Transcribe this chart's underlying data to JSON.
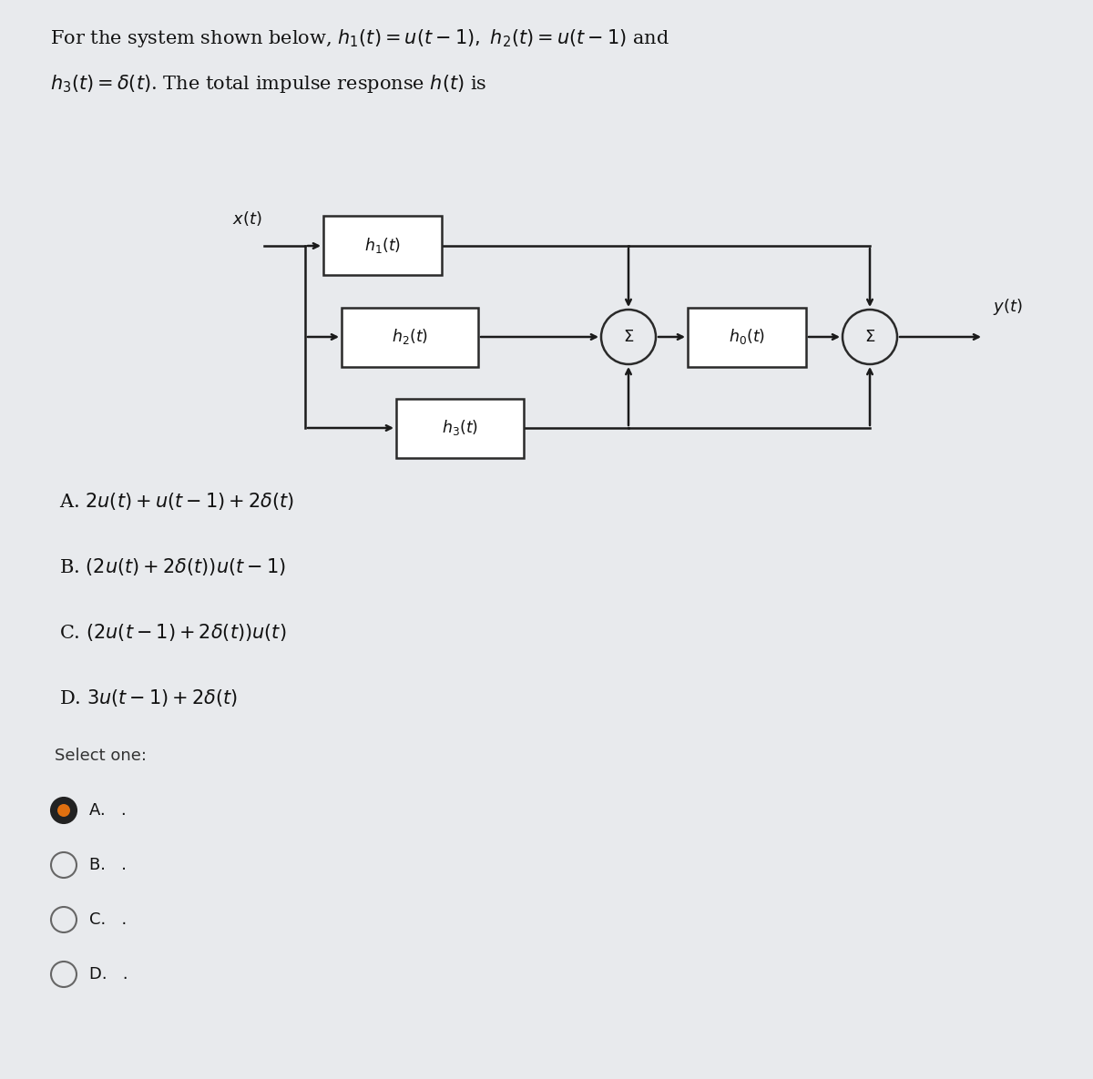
{
  "bg_color": "#cdd3dc",
  "panel_color": "#e8eaed",
  "box_color": "#ffffff",
  "box_border": "#2a2a2a",
  "arrow_color": "#1a1a1a",
  "text_color": "#111111",
  "radio_border": "#666666",
  "radio_fill": "#e07010",
  "radio_dark": "#222222",
  "title_line1": "For the system shown below, $h_1(t) = u(t-1),\\ h_2(t) = u(t-1)$ and",
  "title_line2": "$h_3(t) = \\delta(t)$. The total impulse response $h(t)$ is",
  "h1_label": "$h_1(t)$",
  "h2_label": "$h_2(t)$",
  "h3_label": "$h_3(t)$",
  "hb_label": "$h_0(t)$",
  "xt_label": "$x(t)$",
  "yt_label": "$y(t)$",
  "sigma": "$\\Sigma$",
  "options": [
    "A. $2u(t) + u(t-1) + 2\\delta(t)$",
    "B. $\\left(2u(t) + 2\\delta(t)\\right)u(t-1)$",
    "C. $\\left(2u(t-1) + 2\\delta(t)\\right)u(t)$",
    "D. $3u(t-1) + 2\\delta(t)$"
  ],
  "select_one": "Select one:",
  "radio_labels": [
    "A.  .",
    "B.  .",
    "C.  .",
    "D.  ."
  ],
  "selected": 0
}
